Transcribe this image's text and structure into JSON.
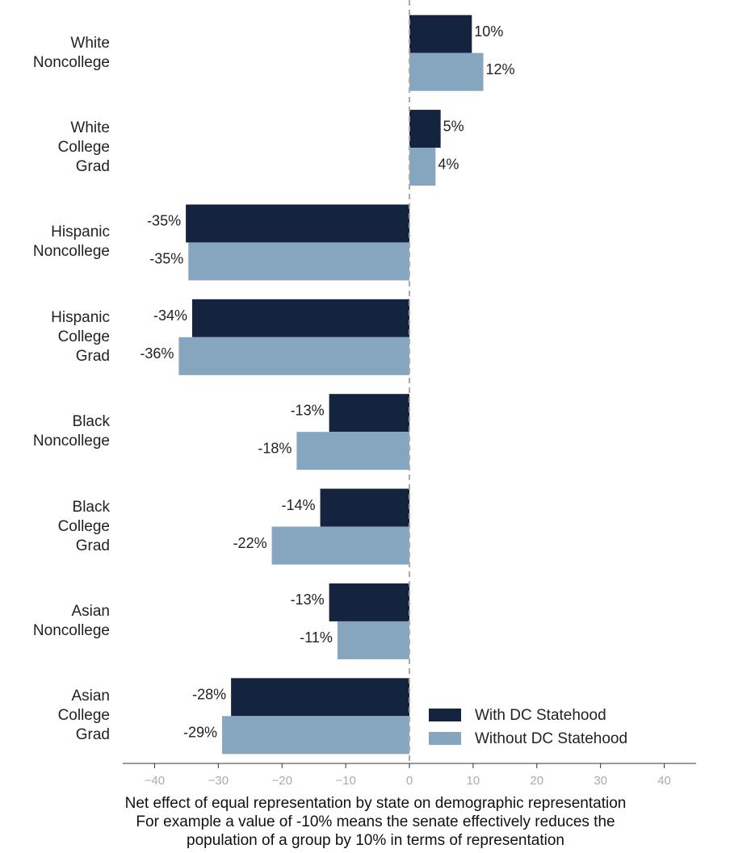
{
  "chart_data": {
    "type": "barh",
    "categories": [
      "White\nNoncollege",
      "White\nCollege\nGrad",
      "Hispanic\nNoncollege",
      "Hispanic\nCollege\nGrad",
      "Black\nNoncollege",
      "Black\nCollege\nGrad",
      "Asian\nNoncollege",
      "Asian\nCollege\nGrad"
    ],
    "series": [
      {
        "name": "With DC Statehood",
        "color": "#14243f",
        "values": [
          9.8,
          4.9,
          -35.1,
          -34.1,
          -12.6,
          -14.0,
          -12.6,
          -28.0
        ],
        "value_labels": [
          "10%",
          "5%",
          "-35%",
          "-34%",
          "-13%",
          "-14%",
          "-13%",
          "-28%"
        ]
      },
      {
        "name": "Without DC Statehood",
        "color": "#86a5bf",
        "values": [
          11.6,
          4.1,
          -34.7,
          -36.2,
          -17.7,
          -21.6,
          -11.3,
          -29.4
        ],
        "value_labels": [
          "12%",
          "4%",
          "-35%",
          "-36%",
          "-18%",
          "-22%",
          "-11%",
          "-29%"
        ]
      }
    ],
    "xlabel": "Net effect of equal representation by state on demographic representation\nFor example a value of -10% means the senate effectively reduces the\npopulation of a group by 10% in terms of representation",
    "xlim": [
      -45,
      45
    ],
    "xticks": [
      {
        "value": -40,
        "label": "−40"
      },
      {
        "value": -30,
        "label": "−30"
      },
      {
        "value": -20,
        "label": "−20"
      },
      {
        "value": -10,
        "label": "−10"
      },
      0,
      10,
      20,
      30,
      40
    ],
    "legend": "lower right"
  }
}
